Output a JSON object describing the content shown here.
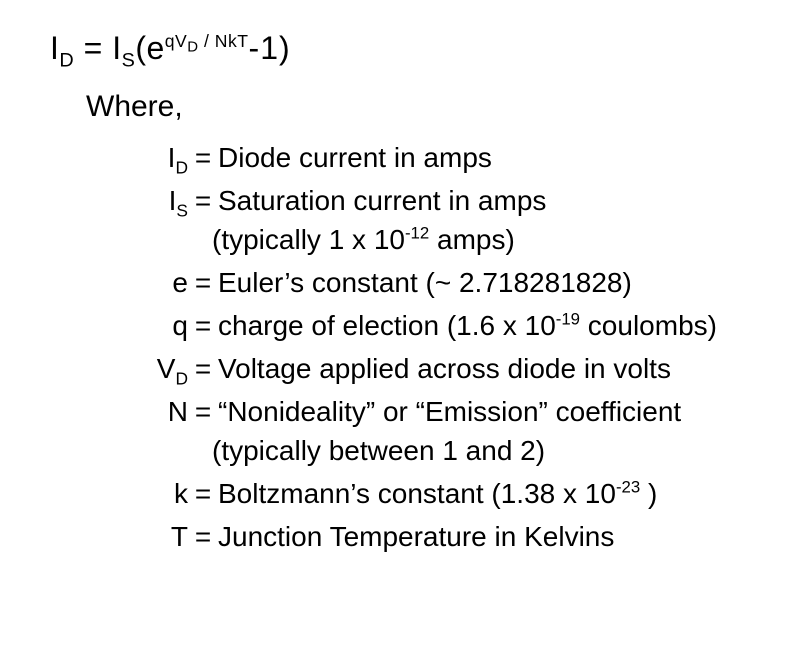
{
  "colors": {
    "text": "#000000",
    "background": "#ffffff"
  },
  "typography": {
    "font_family": "Arial, Helvetica, sans-serif",
    "base_fontsize_pt": 21
  },
  "equation": {
    "lhs_base": "I",
    "lhs_sub": "D",
    "eq": "=",
    "rhs_I": "I",
    "rhs_I_sub": "S",
    "lparen": "(",
    "e": "e",
    "exp_qV": "qV",
    "exp_V_sub": "D",
    "exp_sep": " / ",
    "exp_NkT": "NkT",
    "minus1": "-1",
    "rparen": ")"
  },
  "where_label": "Where,",
  "defs": {
    "ID": {
      "sym_base": "I",
      "sym_sub": "D",
      "eq": "=",
      "desc": "Diode current in amps"
    },
    "IS": {
      "sym_base": "I",
      "sym_sub": "S",
      "eq": "=",
      "desc": "Saturation current in amps"
    },
    "IS_note_pre": "(typically 1 x 10",
    "IS_note_exp": "-12",
    "IS_note_post": " amps)",
    "e": {
      "sym": "e",
      "eq": "=",
      "desc": "Euler’s constant (~ 2.718281828)"
    },
    "q": {
      "sym": "q",
      "eq": "=",
      "desc_pre": "charge of election (1.6 x 10",
      "desc_exp": "-19",
      "desc_post": " coulombs)"
    },
    "VD": {
      "sym_base": "V",
      "sym_sub": "D",
      "eq": "=",
      "desc": "Voltage applied across diode in volts"
    },
    "N": {
      "sym": "N",
      "eq": "=",
      "desc": "“Nonideality” or “Emission” coefficient"
    },
    "N_note": "(typically between 1 and 2)",
    "k": {
      "sym": "k",
      "eq": "=",
      "desc_pre": "Boltzmann’s constant (1.38 x 10",
      "desc_exp": "-23",
      "desc_post": " )"
    },
    "T": {
      "sym": "T",
      "eq": "=",
      "desc": "Junction Temperature in Kelvins"
    }
  }
}
